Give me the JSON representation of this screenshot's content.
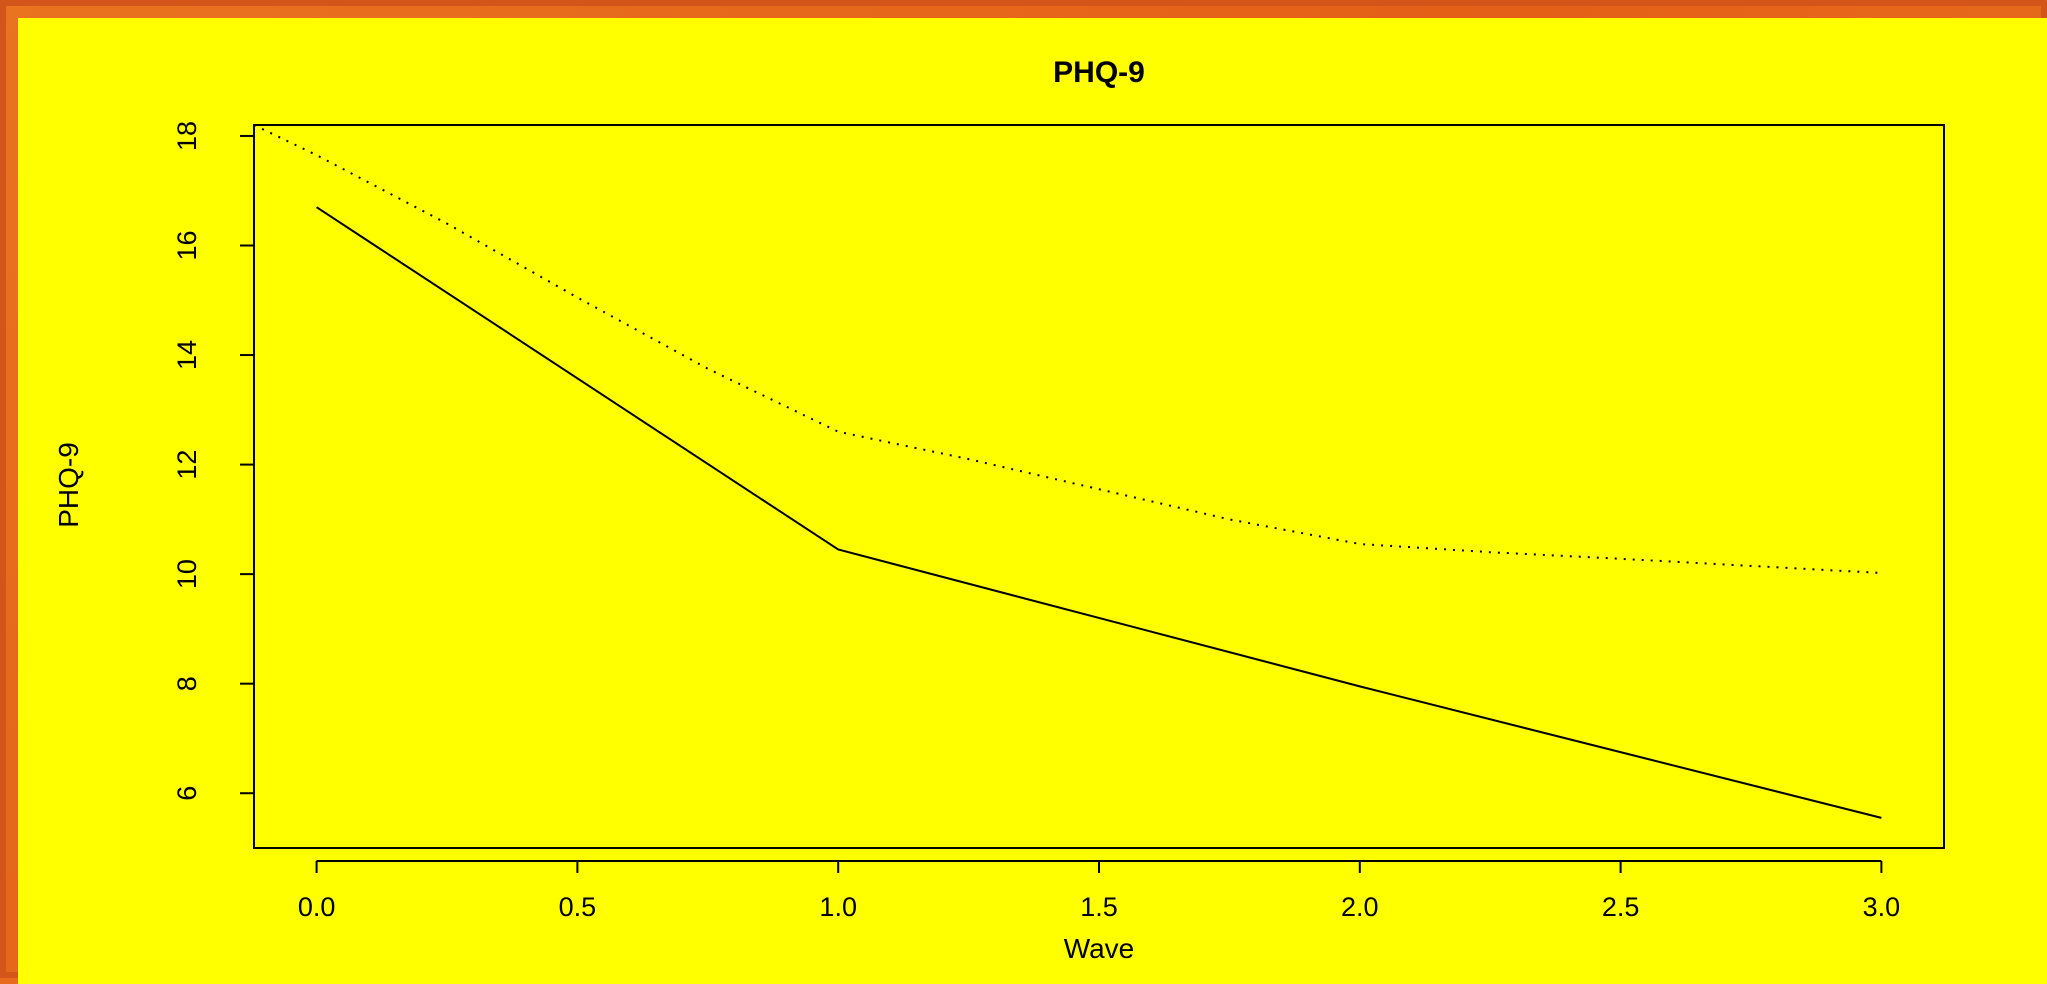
{
  "colors": {
    "background": "#ffff00",
    "frame": "#e86a1c",
    "ink": "#000000"
  },
  "chart_data": {
    "type": "line",
    "title": "PHQ-9",
    "xlabel": "Wave",
    "ylabel": "PHQ-9",
    "xlim": [
      -0.12,
      3.12
    ],
    "ylim": [
      5.0,
      18.2
    ],
    "x_ticks": [
      0.0,
      0.5,
      1.0,
      1.5,
      2.0,
      2.5,
      3.0
    ],
    "x_tick_labels": [
      "0.0",
      "0.5",
      "1.0",
      "1.5",
      "2.0",
      "2.5",
      "3.0"
    ],
    "y_ticks": [
      6,
      8,
      10,
      12,
      14,
      16,
      18
    ],
    "y_tick_labels": [
      "6",
      "8",
      "10",
      "12",
      "14",
      "16",
      "18"
    ],
    "grid": false,
    "legend": "none",
    "series": [
      {
        "style": "solid",
        "x": [
          0.0,
          1.0,
          2.0,
          3.0
        ],
        "y": [
          16.7,
          10.45,
          7.95,
          5.55
        ]
      },
      {
        "style": "dotted",
        "x": [
          -0.12,
          0.0,
          0.25,
          0.5,
          0.75,
          1.0,
          1.25,
          1.5,
          1.75,
          2.0,
          2.25,
          2.5,
          2.75,
          3.0
        ],
        "y": [
          18.2,
          17.65,
          16.4,
          15.05,
          13.75,
          12.6,
          12.1,
          11.55,
          11.0,
          10.55,
          10.4,
          10.28,
          10.15,
          10.02
        ]
      }
    ]
  }
}
